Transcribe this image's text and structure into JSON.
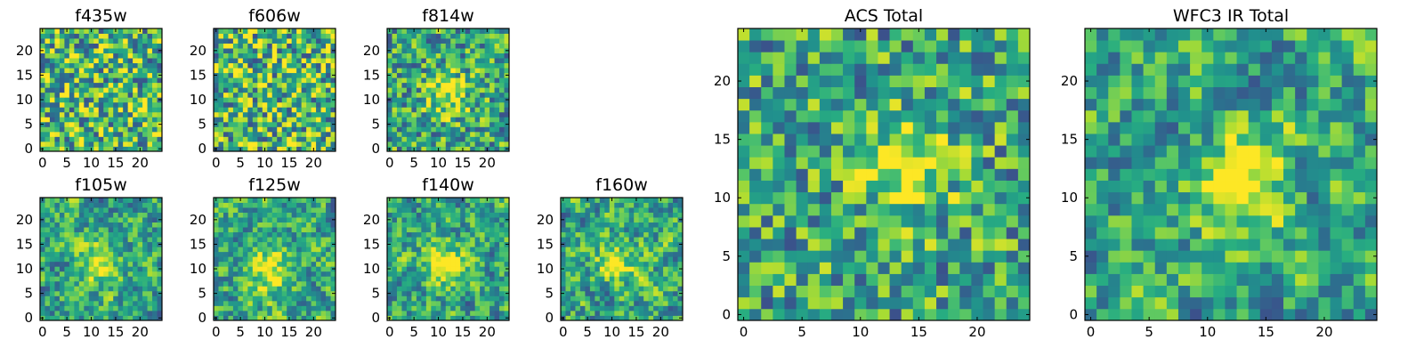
{
  "colormap": "viridis",
  "grid_size": 25,
  "chart_data": [
    {
      "type": "heatmap",
      "title": "f435w",
      "xticks": [
        0,
        5,
        10,
        15,
        20
      ],
      "yticks": [
        0,
        5,
        10,
        15,
        20
      ],
      "vmin": 0,
      "vmax": 1,
      "values": "random 25x25 noise (approximate)"
    },
    {
      "type": "heatmap",
      "title": "f606w",
      "xticks": [
        0,
        5,
        10,
        15,
        20
      ],
      "yticks": [
        0,
        5,
        10,
        15,
        20
      ],
      "vmin": 0,
      "vmax": 1,
      "values": "random 25x25 noise (approximate)"
    },
    {
      "type": "heatmap",
      "title": "f814w",
      "xticks": [
        0,
        5,
        10,
        15,
        20
      ],
      "yticks": [
        0,
        5,
        10,
        15,
        20
      ],
      "vmin": 0,
      "vmax": 1,
      "values": "random 25x25 noise with central peak (approximate)"
    },
    {
      "type": "heatmap",
      "title": "f105w",
      "xticks": [
        0,
        5,
        10,
        15,
        20
      ],
      "yticks": [
        0,
        5,
        10,
        15,
        20
      ],
      "vmin": 0,
      "vmax": 1,
      "values": "smooth 25x25 noise with central peak (approximate)"
    },
    {
      "type": "heatmap",
      "title": "f125w",
      "xticks": [
        0,
        5,
        10,
        15,
        20
      ],
      "yticks": [
        0,
        5,
        10,
        15,
        20
      ],
      "vmin": 0,
      "vmax": 1,
      "values": "smooth 25x25 noise with central peak (approximate)"
    },
    {
      "type": "heatmap",
      "title": "f140w",
      "xticks": [
        0,
        5,
        10,
        15,
        20
      ],
      "yticks": [
        0,
        5,
        10,
        15,
        20
      ],
      "vmin": 0,
      "vmax": 1,
      "values": "smooth 25x25 noise with central peak (approximate)"
    },
    {
      "type": "heatmap",
      "title": "f160w",
      "xticks": [
        0,
        5,
        10,
        15,
        20
      ],
      "yticks": [
        0,
        5,
        10,
        15,
        20
      ],
      "vmin": 0,
      "vmax": 1,
      "values": "smooth 25x25 noise with central peak (approximate)"
    },
    {
      "type": "heatmap",
      "title": "ACS Total",
      "xticks": [
        0,
        5,
        10,
        15,
        20
      ],
      "yticks": [
        0,
        5,
        10,
        15,
        20
      ],
      "vmin": 0,
      "vmax": 1,
      "values": "25x25 noise with central peak near (14,13) (approximate)"
    },
    {
      "type": "heatmap",
      "title": "WFC3 IR Total",
      "xticks": [
        0,
        5,
        10,
        15,
        20
      ],
      "yticks": [
        0,
        5,
        10,
        15,
        20
      ],
      "vmin": 0,
      "vmax": 1,
      "values": "25x25 noise with central peak near (13,12) (approximate)"
    }
  ]
}
